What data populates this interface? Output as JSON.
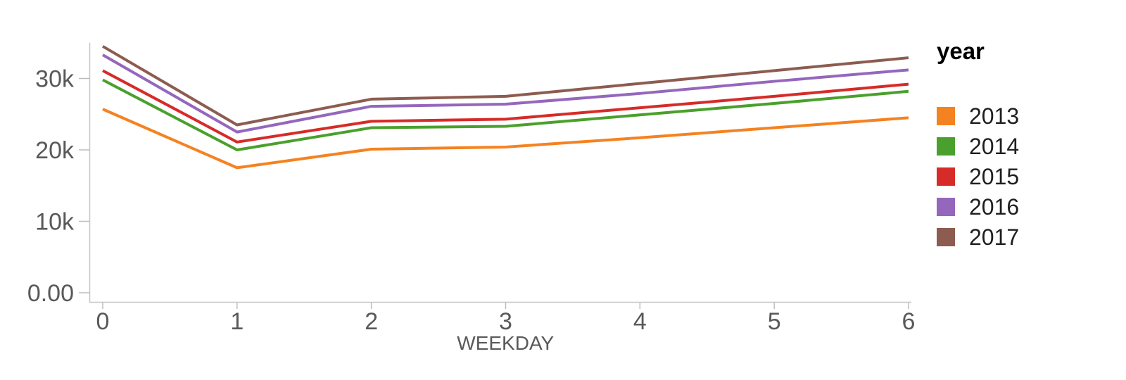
{
  "chart_data": {
    "type": "line",
    "title": "",
    "xlabel": "WEEKDAY",
    "ylabel": "",
    "x": [
      0,
      1,
      2,
      3,
      4,
      5,
      6
    ],
    "x_tick_labels": [
      "0",
      "1",
      "2",
      "3",
      "4",
      "5",
      "6"
    ],
    "y_ticks": [
      {
        "value": 0,
        "label": "0.00"
      },
      {
        "value": 10000,
        "label": "10k"
      },
      {
        "value": 20000,
        "label": "20k"
      },
      {
        "value": 30000,
        "label": "30k"
      }
    ],
    "xlim": [
      0,
      6
    ],
    "ylim": [
      0,
      35000
    ],
    "grid": false,
    "legend": {
      "title": "year",
      "position": "right"
    },
    "series": [
      {
        "name": "2013",
        "color": "#f58220",
        "values": [
          25700,
          17500,
          20100,
          20400,
          21700,
          23100,
          24500
        ]
      },
      {
        "name": "2014",
        "color": "#4aa02c",
        "values": [
          29800,
          20000,
          23100,
          23300,
          24900,
          26500,
          28200
        ]
      },
      {
        "name": "2015",
        "color": "#d62b28",
        "values": [
          31100,
          21100,
          24000,
          24300,
          25900,
          27500,
          29200
        ]
      },
      {
        "name": "2016",
        "color": "#9467bd",
        "values": [
          33300,
          22500,
          26100,
          26400,
          27900,
          29600,
          31200
        ]
      },
      {
        "name": "2017",
        "color": "#8d5c50",
        "values": [
          34500,
          23500,
          27100,
          27500,
          29300,
          31100,
          32900
        ]
      }
    ],
    "style": {
      "axis_line_color": "#c6c6c6",
      "tick_color": "#bdbdbd",
      "tick_label_color": "#595959",
      "axis_title_color": "#595959",
      "line_width": 4
    }
  }
}
